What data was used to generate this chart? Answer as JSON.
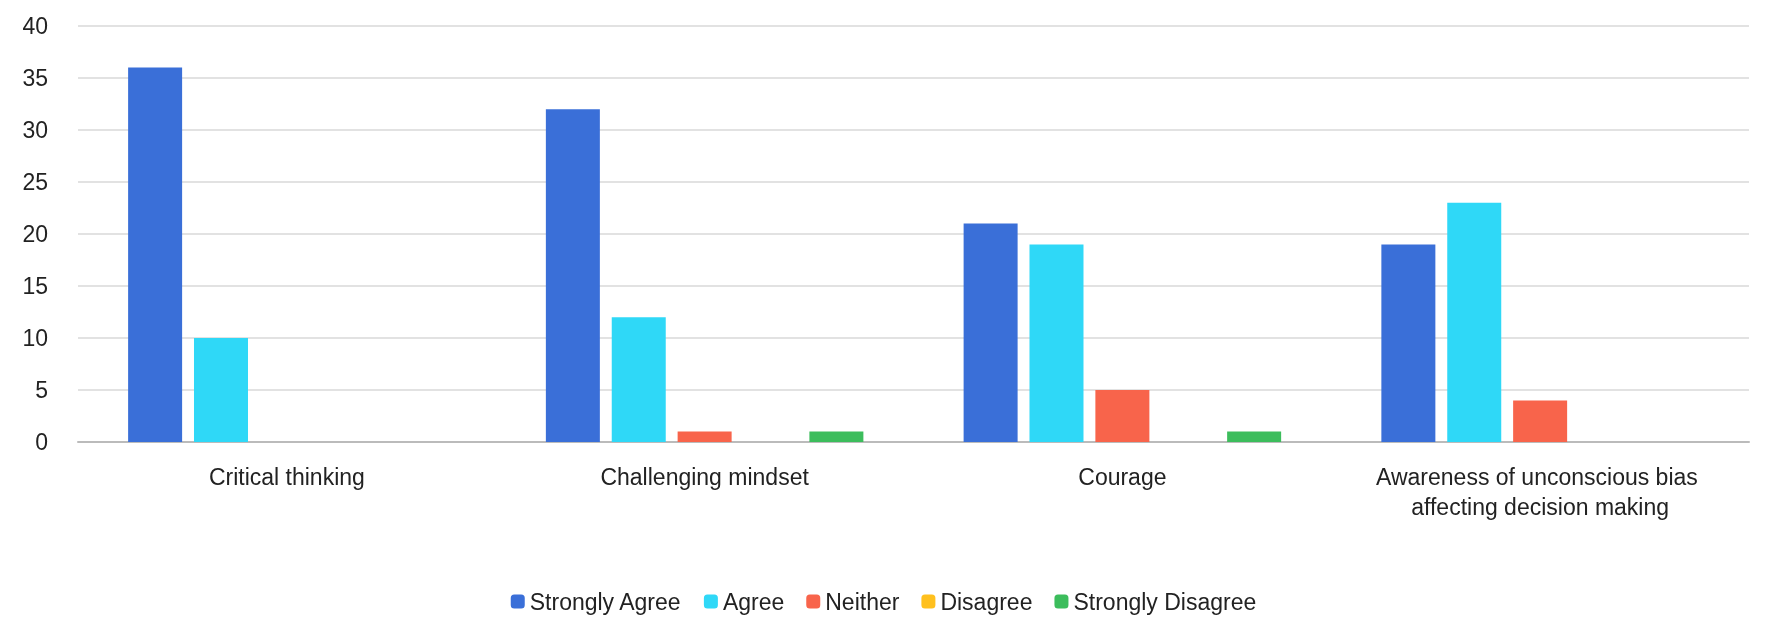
{
  "chart_data": {
    "type": "bar",
    "categories": [
      "Critical thinking",
      "Challenging mindset",
      "Courage",
      "Awareness of unconscious bias affecting decision making"
    ],
    "series": [
      {
        "name": "Strongly Agree",
        "color": "#3a6fd8",
        "values": [
          36,
          32,
          21,
          19
        ]
      },
      {
        "name": "Agree",
        "color": "#2fd8f7",
        "values": [
          10,
          12,
          19,
          23
        ]
      },
      {
        "name": "Neither",
        "color": "#f8644b",
        "values": [
          0,
          1,
          5,
          4
        ]
      },
      {
        "name": "Disagree",
        "color": "#ffc01e",
        "values": [
          0,
          0,
          0,
          0
        ]
      },
      {
        "name": "Strongly Disagree",
        "color": "#3cbd5c",
        "values": [
          0,
          1,
          1,
          0
        ]
      }
    ],
    "ylim": [
      0,
      40
    ],
    "yticks": [
      0,
      5,
      10,
      15,
      20,
      25,
      30,
      35,
      40
    ],
    "grid": "y",
    "legend": "bottom"
  }
}
